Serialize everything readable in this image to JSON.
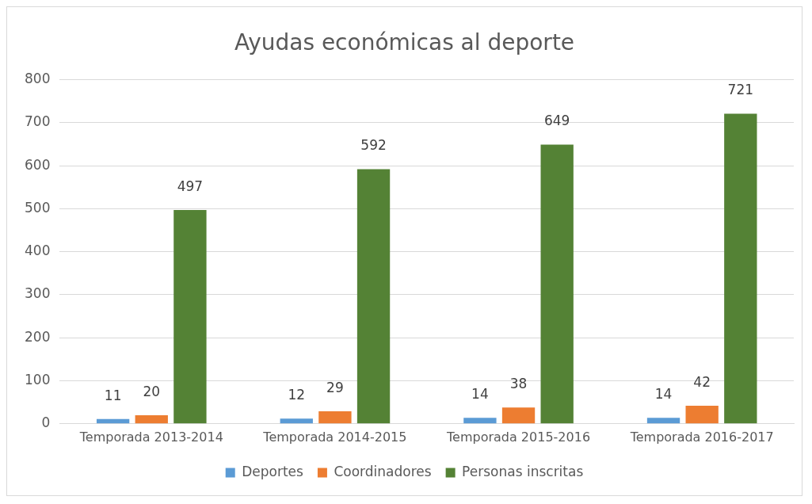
{
  "chart_data": {
    "type": "bar",
    "title": "Ayudas económicas al deporte",
    "categories": [
      "Temporada 2013-2014",
      "Temporada 2014-2015",
      "Temporada 2015-2016",
      "Temporada 2016-2017"
    ],
    "series": [
      {
        "name": "Deportes",
        "color": "#5b9bd5",
        "values": [
          11,
          12,
          14,
          14
        ]
      },
      {
        "name": "Coordinadores",
        "color": "#ed7d31",
        "values": [
          20,
          29,
          38,
          42
        ]
      },
      {
        "name": "Personas inscritas",
        "color": "#548235",
        "values": [
          497,
          592,
          649,
          721
        ]
      }
    ],
    "ylim": [
      0,
      800
    ],
    "yticks": [
      0,
      100,
      200,
      300,
      400,
      500,
      600,
      700,
      800
    ],
    "grid": "y",
    "legend": "bottom",
    "data_labels": true
  }
}
